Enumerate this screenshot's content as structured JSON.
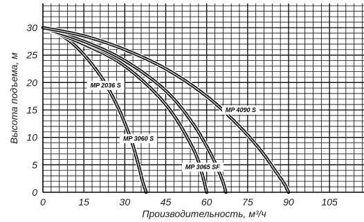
{
  "chart_data": {
    "type": "line",
    "xlabel": "Производительность, м³/ч",
    "ylabel": "Высота подъема, м",
    "xlim": [
      0,
      120
    ],
    "ylim": [
      0,
      35
    ],
    "x_ticks": [
      "0",
      "15",
      "30",
      "45",
      "60",
      "75",
      "90",
      "105"
    ],
    "y_ticks": [
      "0",
      "5",
      "10",
      "15",
      "20",
      "25",
      "30"
    ],
    "grid": true,
    "series": [
      {
        "name": "MP 2036 S",
        "x": [
          0,
          10,
          20,
          27,
          32,
          35,
          36.5,
          37.5,
          37.8
        ],
        "y": [
          30,
          27.5,
          22,
          16,
          10,
          5,
          2,
          0.5,
          0
        ]
      },
      {
        "name": "MP 3060 S",
        "x": [
          0,
          15,
          30,
          45,
          55,
          58.5,
          59.5,
          60
        ],
        "y": [
          30,
          27,
          23,
          16,
          8,
          3,
          1,
          0
        ]
      },
      {
        "name": "MP 3065 SF",
        "x": [
          0,
          15,
          30,
          45,
          55,
          62,
          65.5,
          66.5,
          67
        ],
        "y": [
          30,
          27.5,
          24,
          18.5,
          12.5,
          6.5,
          2.5,
          1,
          0
        ]
      },
      {
        "name": "MP 4090 S",
        "x": [
          0,
          15,
          30,
          45,
          60,
          72,
          80,
          85,
          88.5,
          89.5,
          90
        ],
        "y": [
          30,
          28.5,
          26,
          22.5,
          17.5,
          12,
          7.5,
          4,
          1.5,
          0.5,
          0
        ]
      }
    ]
  }
}
